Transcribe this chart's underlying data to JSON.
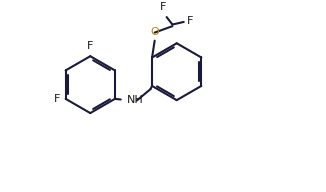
{
  "bg_color": "#ffffff",
  "bond_color": "#1a1a3a",
  "f_color": "#1a1a1a",
  "o_color": "#b8860b",
  "n_color": "#1a1a1a",
  "lw": 1.5,
  "fs": 8.0,
  "figsize": [
    3.26,
    1.92
  ],
  "dpi": 100,
  "xlim": [
    -0.3,
    8.8
  ],
  "ylim": [
    -0.2,
    5.5
  ]
}
